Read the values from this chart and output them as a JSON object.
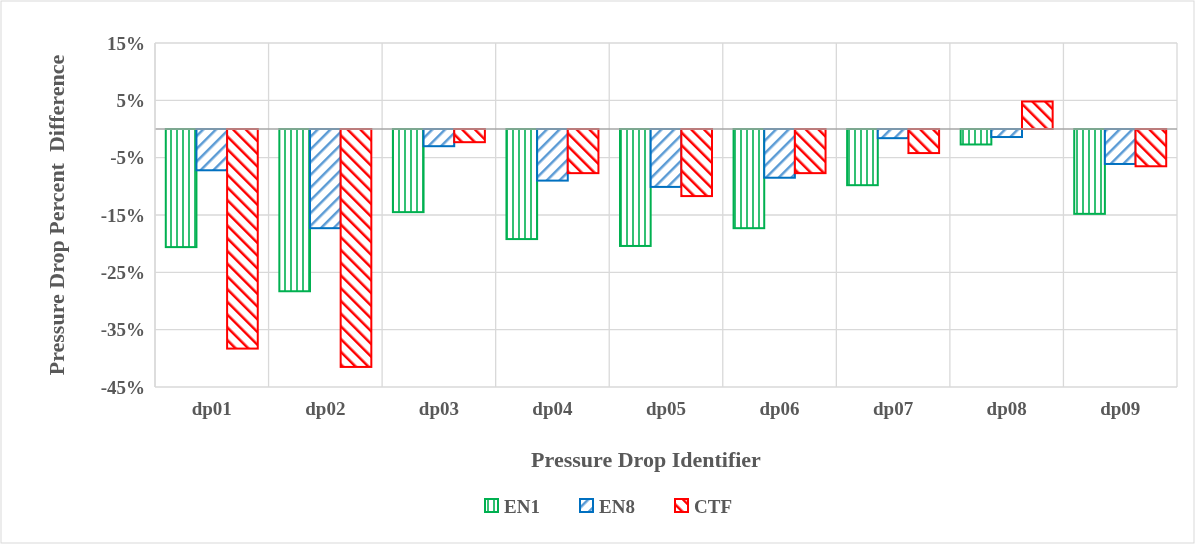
{
  "chart_data": {
    "type": "bar",
    "xlabel": "Pressure Drop Identifier",
    "ylabel": "Pressure Drop Percent  Difference",
    "categories": [
      "dp01",
      "dp02",
      "dp03",
      "dp04",
      "dp05",
      "dp06",
      "dp07",
      "dp08",
      "dp09"
    ],
    "series": [
      {
        "name": "EN1",
        "color": "#00b050",
        "values": [
          -20.6,
          -28.3,
          -14.5,
          -19.2,
          -20.4,
          -17.3,
          -9.8,
          -2.7,
          -14.8
        ]
      },
      {
        "name": "EN8",
        "color": "#0070c0",
        "values": [
          -7.2,
          -17.3,
          -3.0,
          -9.0,
          -10.1,
          -8.5,
          -1.6,
          -1.4,
          -6.1
        ]
      },
      {
        "name": "CTF",
        "color": "#ff0000",
        "values": [
          -38.3,
          -41.5,
          -2.3,
          -7.7,
          -11.7,
          -7.7,
          -4.2,
          4.8,
          -6.5
        ]
      }
    ],
    "ylim": [
      -45,
      15
    ],
    "yticks": [
      {
        "value": 15,
        "label": "15%"
      },
      {
        "value": 5,
        "label": "5%"
      },
      {
        "value": -5,
        "label": "-5%"
      },
      {
        "value": -15,
        "label": "-15%"
      },
      {
        "value": -25,
        "label": "-25%"
      },
      {
        "value": -35,
        "label": "-35%"
      },
      {
        "value": -45,
        "label": "-45%"
      }
    ],
    "grid": true,
    "legend": "bottom"
  }
}
